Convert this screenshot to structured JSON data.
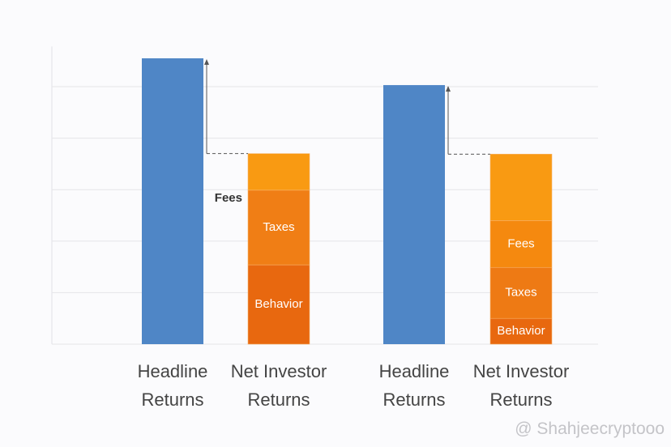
{
  "chart_data": {
    "type": "stacked_comparison",
    "ylim": [
      0,
      6
    ],
    "yticks": [
      1,
      2,
      3,
      4,
      5
    ],
    "grid": true,
    "headline_color": "#4f86c6",
    "groups": [
      {
        "headline_label": "Headline Returns",
        "headline_value": 5.55,
        "net_label": "Net Investor Returns",
        "segments": [
          {
            "name": "Behavior",
            "value": 1.54,
            "color": "#e8680f"
          },
          {
            "name": "Taxes",
            "value": 1.45,
            "color": "#f07e15"
          },
          {
            "name": "Fees",
            "value": 0.71,
            "color": "#f99a12"
          }
        ]
      },
      {
        "headline_label": "Headline Returns",
        "headline_value": 5.03,
        "net_label": "Net Investor Returns",
        "segments": [
          {
            "name": "Behavior",
            "value": 0.5,
            "color": "#e8680f"
          },
          {
            "name": "Taxes",
            "value": 0.99,
            "color": "#ee7a14"
          },
          {
            "name": "Fees",
            "value": 0.91,
            "color": "#f5890f"
          },
          {
            "name": null,
            "value": 1.29,
            "color": "#f99a12"
          }
        ]
      }
    ],
    "watermark": "@ Shahjeecryptooo"
  }
}
